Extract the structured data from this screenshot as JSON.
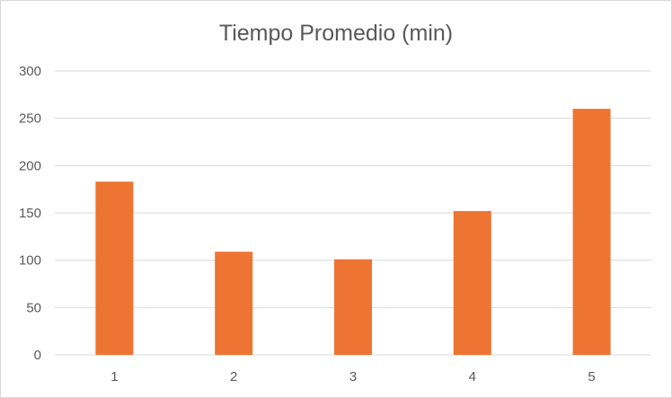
{
  "chart_data": {
    "type": "bar",
    "title": "Tiempo Promedio (min)",
    "categories": [
      "1",
      "2",
      "3",
      "4",
      "5"
    ],
    "series": [
      {
        "values": [
          183,
          109,
          101,
          152,
          260
        ]
      }
    ],
    "ylim": [
      0,
      300
    ],
    "yticks": [
      "0",
      "50",
      "100",
      "150",
      "200",
      "250",
      "300"
    ],
    "grid": true,
    "legend": "none",
    "colors": {
      "bar": "#ED7432",
      "grid": "#D9D9D9",
      "text": "#595959"
    }
  }
}
